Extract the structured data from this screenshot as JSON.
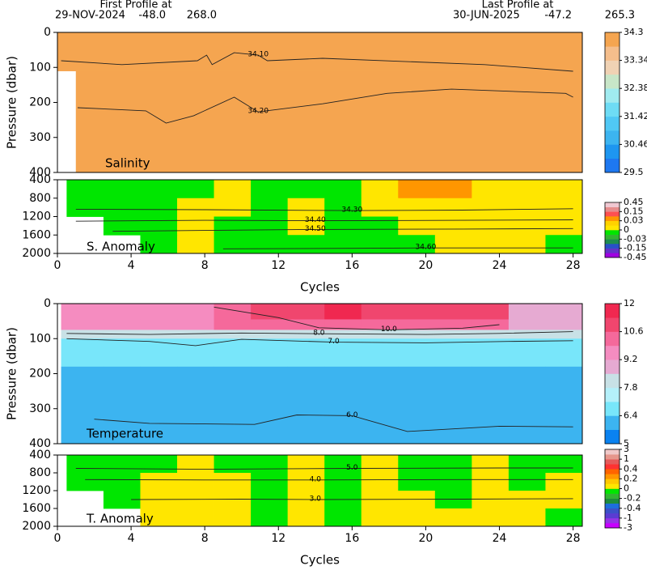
{
  "header": {
    "first_label": "First Profile at",
    "first_date": "29-NOV-2024",
    "first_lat": "-48.0",
    "first_lon": "268.0",
    "last_label": "Last Profile at",
    "last_date": "30-JUN-2025",
    "last_lat": "-47.2",
    "last_lon": "265.3"
  },
  "chart_data": [
    {
      "type": "heatmap",
      "label": "Salinity",
      "ylabel": "Pressure (dbar)",
      "xlim": [
        0,
        28.5
      ],
      "ylim": [
        400,
        0
      ],
      "yticks": [
        0,
        100,
        200,
        300,
        400
      ],
      "x_edges": [
        0,
        1,
        28.5
      ],
      "y_edges": [
        0,
        110,
        400
      ],
      "values": [
        [
          34.2,
          34.2
        ],
        [
          null,
          34.2
        ]
      ],
      "levels": [
        29.5,
        29.98,
        30.46,
        30.94,
        31.42,
        31.9,
        32.38,
        32.86,
        33.34,
        33.82,
        34.3
      ],
      "colors": [
        "#1e78f0",
        "#1e96f0",
        "#3cb4f0",
        "#50c8f5",
        "#6edcf5",
        "#a0ebf0",
        "#c8e6c8",
        "#f0d2b4",
        "#f5be8c",
        "#f5a550"
      ],
      "colorbar_ticks": [
        34.3,
        33.34,
        32.38,
        31.42,
        30.46,
        29.5
      ],
      "contours": [
        {
          "label": "34.10",
          "x": [
            0.2,
            3.5,
            7.6,
            8.1,
            8.4,
            9.6,
            10.9,
            11.4,
            14.4,
            18.8,
            23.2,
            28
          ],
          "y": [
            81,
            92,
            81,
            65,
            92,
            58,
            65,
            81,
            74,
            83,
            92,
            111
          ]
        },
        {
          "label": "34.20",
          "x": [
            1.1,
            4.8,
            5.9,
            7.4,
            9.6,
            10.9,
            14.4,
            17.9,
            21.4,
            27.6,
            28
          ],
          "y": [
            215,
            224,
            259,
            238,
            185,
            227,
            204,
            174,
            162,
            174,
            185
          ]
        }
      ]
    },
    {
      "type": "heatmap",
      "label": "S. Anomaly",
      "xlabel": "Cycles",
      "xlim": [
        0,
        28.5
      ],
      "xticks": [
        0,
        4,
        8,
        12,
        16,
        20,
        24,
        28
      ],
      "ylim": [
        2000,
        400
      ],
      "yticks": [
        400,
        800,
        1200,
        1600,
        2000
      ],
      "x_edges": [
        0.5,
        2.5,
        4.5,
        6.5,
        8.5,
        10.5,
        12.5,
        14.5,
        16.5,
        18.5,
        20.5,
        22.5,
        24.5,
        26.5,
        28.5
      ],
      "y_edges": [
        400,
        800,
        1200,
        1600,
        2000
      ],
      "values": [
        [
          -0.01,
          -0.01,
          -0.01,
          -0.01,
          0.01,
          -0.01,
          -0.01,
          -0.01,
          0.01,
          0.05,
          0.05,
          0.01,
          0.01,
          0.01
        ],
        [
          -0.01,
          -0.01,
          -0.01,
          0.01,
          0.01,
          -0.01,
          0.01,
          -0.01,
          0.01,
          0.01,
          0.01,
          0.01,
          0.01,
          0.01
        ],
        [
          null,
          -0.01,
          -0.01,
          0.01,
          -0.01,
          -0.01,
          0.01,
          -0.01,
          -0.01,
          0.01,
          0.01,
          0.01,
          0.01,
          0.01
        ],
        [
          null,
          null,
          -0.01,
          0.01,
          -0.01,
          -0.01,
          -0.01,
          -0.01,
          -0.01,
          -0.01,
          0.01,
          0.01,
          0.01,
          -0.01
        ]
      ],
      "levels": [
        -0.45,
        -0.3,
        -0.15,
        -0.09,
        -0.03,
        -0.015,
        0,
        0.015,
        0.03,
        0.09,
        0.15,
        0.3,
        0.45
      ],
      "colors": [
        "#a000e0",
        "#6432c8",
        "#2850c8",
        "#1e8c50",
        "#32b432",
        "#00e600",
        "#ffe600",
        "#ffd200",
        "#ff9600",
        "#ff5050",
        "#e68c8c",
        "#f0c8d2"
      ],
      "colorbar_ticks": [
        0.45,
        0.15,
        0.03,
        0,
        -0.03,
        -0.15,
        -0.45
      ],
      "contours": [
        {
          "label": "34.30",
          "x": [
            1,
            8,
            16,
            22,
            28
          ],
          "y": [
            1040,
            1050,
            1070,
            1060,
            1030
          ]
        },
        {
          "label": "34.40",
          "x": [
            1,
            8,
            14,
            22,
            28
          ],
          "y": [
            1300,
            1280,
            1290,
            1280,
            1270
          ]
        },
        {
          "label": "34.50",
          "x": [
            3,
            8,
            14,
            22,
            28
          ],
          "y": [
            1520,
            1500,
            1480,
            1470,
            1460
          ]
        },
        {
          "label": "34.60",
          "x": [
            9,
            16,
            20,
            28
          ],
          "y": [
            1900,
            1890,
            1880,
            1880
          ]
        }
      ]
    },
    {
      "type": "heatmap",
      "label": "Temperature",
      "ylabel": "Pressure (dbar)",
      "xlim": [
        0,
        28.5
      ],
      "ylim": [
        400,
        0
      ],
      "yticks": [
        0,
        100,
        200,
        300,
        400
      ],
      "x_edges": [
        0.2,
        2.5,
        4.5,
        6.5,
        8.5,
        10.5,
        12.5,
        14.5,
        16.5,
        18.5,
        20.5,
        22.5,
        24.5,
        26.5,
        28.5
      ],
      "y_edges": [
        0,
        45,
        75,
        100,
        180,
        400
      ],
      "values": [
        [
          9.5,
          9.5,
          9.5,
          9.5,
          10.2,
          11,
          11,
          11.5,
          11,
          11,
          11,
          11,
          8.8,
          8.8
        ],
        [
          9.5,
          9.5,
          9.5,
          9.5,
          10.2,
          10.2,
          10.2,
          10.2,
          10.2,
          10.2,
          10.2,
          10.2,
          8.8,
          8.8
        ],
        [
          8.2,
          8.2,
          8.2,
          8.2,
          8.2,
          8.2,
          8.2,
          8.2,
          8.2,
          8.2,
          8.2,
          8.2,
          8.2,
          8.2
        ],
        [
          6.8,
          6.8,
          6.8,
          6.8,
          6.8,
          6.8,
          6.8,
          6.8,
          6.8,
          6.8,
          6.8,
          6.8,
          6.8,
          6.8
        ],
        [
          6,
          6,
          6,
          6,
          6,
          6,
          6,
          6,
          6,
          6,
          6,
          6,
          6,
          6
        ]
      ],
      "levels": [
        5,
        5.7,
        6.4,
        7.1,
        7.8,
        8.5,
        9.2,
        9.9,
        10.6,
        11.3,
        12
      ],
      "colors": [
        "#0a82f0",
        "#3cb4f0",
        "#78e6fa",
        "#b4f0fa",
        "#c8e1e6",
        "#e6aad2",
        "#f58cc0",
        "#f5699b",
        "#f0466e",
        "#f02850"
      ],
      "colorbar_ticks": [
        12,
        10.6,
        9.2,
        7.8,
        6.4,
        5
      ],
      "contours": [
        {
          "label": "10.0",
          "x": [
            8.5,
            12,
            14.2,
            18,
            22,
            24
          ],
          "y": [
            10,
            40,
            69,
            75,
            70,
            60
          ]
        },
        {
          "label": "8.0",
          "x": [
            0.5,
            5,
            10,
            14.2,
            20,
            24,
            28
          ],
          "y": [
            85,
            88,
            84,
            86,
            88,
            85,
            80
          ]
        },
        {
          "label": "7.0",
          "x": [
            0.5,
            5,
            7.5,
            10,
            15,
            20,
            24.5,
            28
          ],
          "y": [
            100,
            108,
            120,
            102,
            110,
            112,
            108,
            106
          ]
        },
        {
          "label": "6.0",
          "x": [
            2,
            5,
            10.7,
            13,
            16,
            19,
            24,
            28
          ],
          "y": [
            330,
            342,
            345,
            318,
            320,
            365,
            350,
            352
          ]
        }
      ]
    },
    {
      "type": "heatmap",
      "label": "T. Anomaly",
      "xlabel": "Cycles",
      "xlim": [
        0,
        28.5
      ],
      "xticks": [
        0,
        4,
        8,
        12,
        16,
        20,
        24,
        28
      ],
      "ylim": [
        2000,
        400
      ],
      "yticks": [
        400,
        800,
        1200,
        1600,
        2000
      ],
      "x_edges": [
        0.5,
        2.5,
        4.5,
        6.5,
        8.5,
        10.5,
        12.5,
        14.5,
        16.5,
        18.5,
        20.5,
        22.5,
        24.5,
        26.5,
        28.5
      ],
      "y_edges": [
        400,
        800,
        1200,
        1600,
        2000
      ],
      "values": [
        [
          -0.05,
          -0.05,
          -0.05,
          0.05,
          -0.05,
          -0.05,
          0.05,
          -0.05,
          0.05,
          -0.05,
          -0.05,
          0.05,
          -0.05,
          -0.05
        ],
        [
          -0.05,
          -0.05,
          0.05,
          0.05,
          0.05,
          -0.05,
          0.05,
          -0.05,
          0.05,
          -0.05,
          -0.05,
          0.05,
          -0.05,
          0.05
        ],
        [
          null,
          -0.05,
          0.05,
          0.05,
          0.05,
          -0.05,
          0.05,
          -0.05,
          0.05,
          0.05,
          -0.05,
          0.05,
          0.05,
          0.05
        ],
        [
          null,
          null,
          0.05,
          0.05,
          0.05,
          -0.05,
          0.05,
          -0.05,
          0.05,
          0.05,
          0.05,
          0.05,
          0.05,
          -0.05
        ]
      ],
      "levels": [
        -3,
        -2,
        -1,
        -0.7,
        -0.4,
        -0.3,
        -0.2,
        -0.1,
        0,
        0.1,
        0.2,
        0.3,
        0.4,
        0.7,
        1,
        2,
        3
      ],
      "colors": [
        "#c800ff",
        "#9632e6",
        "#5a3cd2",
        "#3c50c8",
        "#1e6edc",
        "#1e8c3c",
        "#32b432",
        "#00e600",
        "#ffe600",
        "#ffc800",
        "#ff9600",
        "#ff6400",
        "#ff3232",
        "#e65a5a",
        "#e6968c",
        "#f0c8c8"
      ],
      "colorbar_ticks": [
        3,
        1,
        0.4,
        0.2,
        0,
        -0.2,
        -0.4,
        -1,
        -3
      ],
      "contours": [
        {
          "label": "5.0",
          "x": [
            1,
            8,
            16,
            24,
            28
          ],
          "y": [
            700,
            720,
            700,
            690,
            690
          ]
        },
        {
          "label": "4.0",
          "x": [
            1.5,
            8,
            14,
            22,
            28
          ],
          "y": [
            950,
            960,
            960,
            950,
            950
          ]
        },
        {
          "label": "3.0",
          "x": [
            4,
            10,
            14,
            22,
            28
          ],
          "y": [
            1400,
            1390,
            1400,
            1390,
            1380
          ]
        }
      ]
    }
  ]
}
